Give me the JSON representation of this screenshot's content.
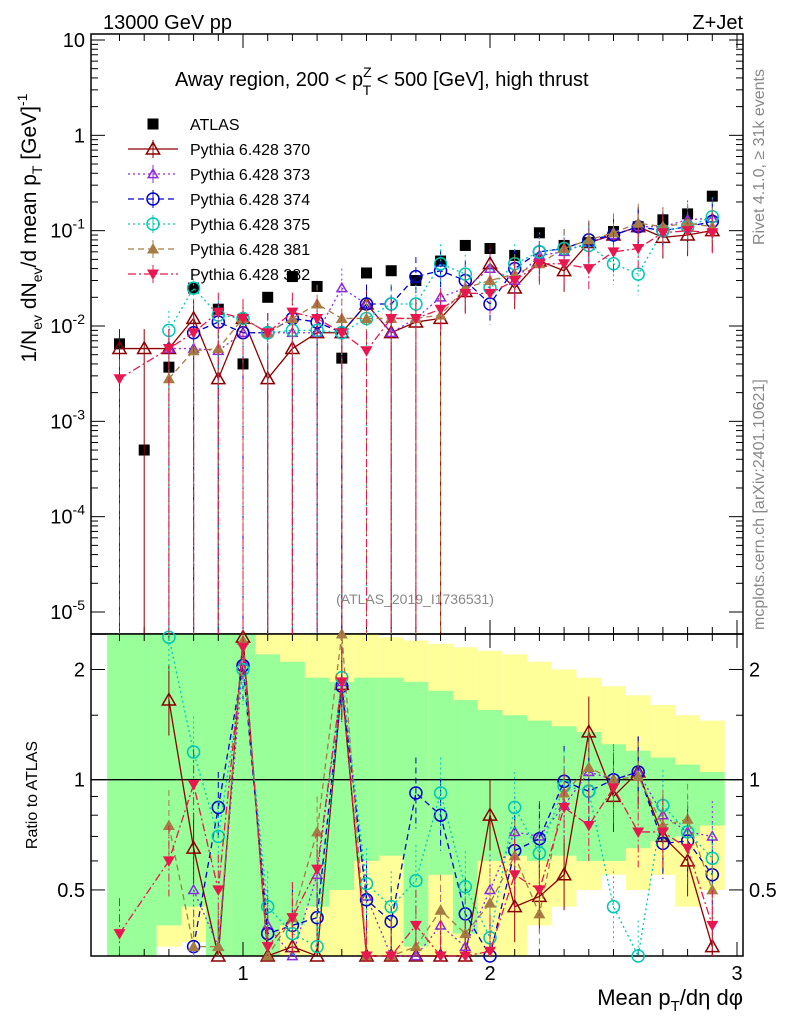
{
  "header": {
    "energy_label": "13000 GeV pp",
    "process_label": "Z+Jet",
    "plot_title_prefix": "Away region, 200 < p",
    "plot_title_sup": "Z",
    "plot_title_sub": "T",
    "plot_title_suffix": " < 500 [GeV], high thrust",
    "analysis_id": "(ATLAS_2019_I1736531)",
    "side_rivet": "Rivet 4.1.0, ≥ 31k events",
    "side_mcplots": "mcplots.cern.ch [arXiv:2401.10621]"
  },
  "axes": {
    "ylabel_main": "1/N_ev dN_ev/d mean p_T [GeV]^-1",
    "ylabel_ratio": "Ratio to ATLAS",
    "xlabel": "Mean p_T/dη dφ",
    "main_yticks": [
      "10",
      "1",
      "10^-1",
      "10^-2",
      "10^-3",
      "10^-4",
      "10^-5"
    ],
    "ratio_yticks": [
      "2",
      "1",
      "0.5"
    ],
    "xticks": [
      "1",
      "2",
      "3"
    ]
  },
  "legend": [
    {
      "label": "ATLAS",
      "color": "#000000",
      "marker": "square"
    },
    {
      "label": "Pythia 6.428 370",
      "color": "#8b0000",
      "marker": "triangle-open"
    },
    {
      "label": "Pythia 6.428 373",
      "color": "#8a2be2",
      "marker": "triangle-open-small"
    },
    {
      "label": "Pythia 6.428 374",
      "color": "#0000cd",
      "marker": "circle-open"
    },
    {
      "label": "Pythia 6.428 375",
      "color": "#00c8b4",
      "marker": "circle-open"
    },
    {
      "label": "Pythia 6.428 381",
      "color": "#a67c45",
      "marker": "triangle-filled"
    },
    {
      "label": "Pythia 6.428 382",
      "color": "#e8174f",
      "marker": "triangle-down-filled"
    }
  ],
  "chart_data": {
    "type": "scatter",
    "title": "Away region, 200 < pT^Z < 500 [GeV], high thrust",
    "xlabel": "Mean p_T/dη dφ",
    "ylabel": "1/N_ev dN_ev/d mean p_T [GeV]^-1",
    "xlim": [
      0.4,
      3.0
    ],
    "ylim": [
      7e-06,
      10
    ],
    "yscale": "log",
    "ratio_ylim": [
      0.33,
      2.5
    ],
    "x": [
      0.5,
      0.6,
      0.7,
      0.8,
      0.9,
      1.0,
      1.1,
      1.2,
      1.3,
      1.4,
      1.5,
      1.6,
      1.7,
      1.8,
      1.9,
      2.0,
      2.1,
      2.2,
      2.3,
      2.4,
      2.5,
      2.6,
      2.7,
      2.8,
      2.9
    ],
    "bands": {
      "stat_green": [
        [
          0.33,
          2.5
        ],
        [
          0.33,
          2.5
        ],
        [
          0.4,
          2.5
        ],
        [
          0.45,
          2.5
        ],
        [
          0.33,
          2.5
        ],
        [
          0.33,
          2.5
        ],
        [
          0.33,
          2.2
        ],
        [
          0.4,
          2.1
        ],
        [
          0.45,
          1.9
        ],
        [
          0.5,
          1.85
        ],
        [
          0.6,
          1.9
        ],
        [
          0.62,
          1.9
        ],
        [
          0.35,
          1.85
        ],
        [
          0.55,
          1.75
        ],
        [
          0.38,
          1.65
        ],
        [
          0.6,
          1.55
        ],
        [
          0.62,
          1.5
        ],
        [
          0.6,
          1.45
        ],
        [
          0.62,
          1.4
        ],
        [
          0.6,
          1.35
        ],
        [
          0.6,
          1.25
        ],
        [
          0.65,
          1.2
        ],
        [
          0.68,
          1.15
        ],
        [
          0.7,
          1.1
        ],
        [
          0.75,
          1.05
        ]
      ],
      "total_yellow": [
        [
          0.33,
          2.5
        ],
        [
          0.33,
          2.5
        ],
        [
          0.35,
          2.5
        ],
        [
          0.36,
          2.5
        ],
        [
          0.33,
          2.5
        ],
        [
          0.33,
          2.5
        ],
        [
          0.33,
          2.5
        ],
        [
          0.33,
          2.5
        ],
        [
          0.33,
          2.5
        ],
        [
          0.33,
          2.5
        ],
        [
          0.33,
          2.5
        ],
        [
          0.33,
          2.45
        ],
        [
          0.33,
          2.4
        ],
        [
          0.33,
          2.35
        ],
        [
          0.33,
          2.3
        ],
        [
          0.33,
          2.25
        ],
        [
          0.33,
          2.2
        ],
        [
          0.4,
          2.1
        ],
        [
          0.45,
          2.0
        ],
        [
          0.5,
          1.9
        ],
        [
          0.55,
          1.8
        ],
        [
          0.5,
          1.7
        ],
        [
          0.55,
          1.6
        ],
        [
          0.45,
          1.5
        ],
        [
          0.5,
          1.45
        ]
      ]
    },
    "series": [
      {
        "name": "ATLAS",
        "values": [
          0.0065,
          0.0005,
          0.0037,
          0.025,
          0.015,
          0.004,
          0.02,
          0.033,
          0.026,
          0.0046,
          0.036,
          0.038,
          0.03,
          0.048,
          0.07,
          0.065,
          0.055,
          0.095,
          0.07,
          0.075,
          0.098,
          0.11,
          0.13,
          0.15,
          0.23
        ]
      },
      {
        "name": "Pythia 6.428 370",
        "values": [
          0.0058,
          0.0058,
          0.0058,
          0.012,
          0.0028,
          0.012,
          0.0028,
          0.0058,
          0.0085,
          0.0085,
          0.017,
          0.0085,
          0.011,
          0.012,
          0.023,
          0.045,
          0.025,
          0.048,
          0.038,
          0.075,
          0.09,
          0.11,
          0.085,
          0.09,
          0.1
        ]
      },
      {
        "name": "Pythia 6.428 373",
        "values": [
          null,
          null,
          0.0058,
          0.0058,
          0.0055,
          0.0085,
          0.0085,
          0.0085,
          0.0085,
          0.025,
          0.017,
          0.0085,
          0.012,
          0.02,
          0.025,
          0.04,
          0.03,
          0.055,
          0.06,
          0.075,
          0.09,
          0.11,
          0.11,
          0.13,
          0.135
        ]
      },
      {
        "name": "Pythia 6.428 374",
        "values": [
          null,
          null,
          null,
          0.0085,
          0.011,
          0.0085,
          0.0085,
          0.012,
          0.011,
          0.0085,
          0.017,
          0.017,
          0.033,
          0.038,
          0.03,
          0.017,
          0.04,
          0.06,
          0.065,
          0.08,
          0.09,
          0.11,
          0.1,
          0.11,
          0.125
        ]
      },
      {
        "name": "Pythia 6.428 375",
        "values": [
          null,
          null,
          0.009,
          0.025,
          0.013,
          0.012,
          0.0085,
          0.009,
          0.009,
          0.0085,
          0.012,
          0.017,
          0.017,
          0.045,
          0.035,
          0.025,
          0.045,
          0.06,
          0.065,
          0.07,
          0.045,
          0.035,
          0.1,
          0.11,
          0.14
        ]
      },
      {
        "name": "Pythia 6.428 381",
        "values": [
          null,
          null,
          0.0028,
          0.0055,
          0.0058,
          0.012,
          0.0085,
          0.012,
          0.017,
          0.012,
          0.012,
          0.012,
          0.012,
          0.013,
          0.025,
          0.03,
          0.035,
          0.045,
          0.065,
          0.08,
          0.095,
          0.12,
          0.11,
          0.12,
          0.11
        ]
      },
      {
        "name": "Pythia 6.428 382",
        "values": [
          0.0028,
          null,
          0.0058,
          0.0085,
          0.014,
          0.012,
          0.0085,
          0.014,
          0.012,
          0.0085,
          0.0055,
          0.012,
          0.012,
          0.015,
          0.022,
          0.022,
          0.03,
          0.045,
          0.045,
          0.04,
          0.06,
          0.065,
          0.095,
          0.1,
          0.095
        ]
      }
    ],
    "ratio_series": [
      {
        "name": "Pythia 6.428 370",
        "values": [
          null,
          null,
          1.65,
          0.65,
          0.2,
          2.45,
          0.3,
          0.35,
          0.33,
          1.82,
          0.33,
          0.2,
          0.33,
          0.25,
          0.33,
          0.8,
          0.45,
          0.48,
          0.55,
          1.35,
          0.9,
          1.05,
          0.7,
          0.6,
          0.35
        ]
      },
      {
        "name": "Pythia 6.428 373",
        "values": [
          null,
          null,
          null,
          0.5,
          0.35,
          2.1,
          0.4,
          0.33,
          0.55,
          1.85,
          0.48,
          0.33,
          0.33,
          0.4,
          0.35,
          0.5,
          0.72,
          0.7,
          0.85,
          1.05,
          1.0,
          1.05,
          0.8,
          0.72,
          0.7
        ]
      },
      {
        "name": "Pythia 6.428 374",
        "values": [
          null,
          null,
          null,
          0.35,
          0.84,
          2.05,
          0.38,
          0.4,
          0.42,
          1.8,
          0.47,
          0.41,
          0.92,
          0.8,
          0.43,
          0.27,
          0.64,
          0.69,
          0.99,
          0.93,
          1.0,
          1.05,
          0.67,
          0.68,
          0.55
        ]
      },
      {
        "name": "Pythia 6.428 375",
        "values": [
          null,
          null,
          2.45,
          1.19,
          0.7,
          2.0,
          0.45,
          0.38,
          0.35,
          1.9,
          0.52,
          0.45,
          0.53,
          0.92,
          0.51,
          0.37,
          0.84,
          0.63,
          0.96,
          0.93,
          0.45,
          0.32,
          0.85,
          0.72,
          0.61
        ]
      },
      {
        "name": "Pythia 6.428 381",
        "values": [
          null,
          null,
          0.75,
          0.35,
          0.35,
          2.4,
          0.3,
          0.42,
          0.72,
          2.5,
          0.33,
          0.32,
          0.35,
          0.44,
          0.38,
          0.46,
          0.62,
          0.43,
          0.92,
          1.08,
          1.0,
          1.02,
          0.75,
          0.78,
          0.5
        ]
      },
      {
        "name": "Pythia 6.428 382",
        "values": [
          0.38,
          null,
          0.6,
          0.97,
          0.5,
          2.3,
          0.35,
          0.42,
          0.57,
          1.85,
          0.33,
          0.32,
          0.4,
          0.32,
          0.32,
          0.34,
          0.55,
          0.5,
          0.84,
          0.75,
          0.95,
          0.72,
          0.72,
          0.65,
          0.4
        ]
      }
    ]
  }
}
